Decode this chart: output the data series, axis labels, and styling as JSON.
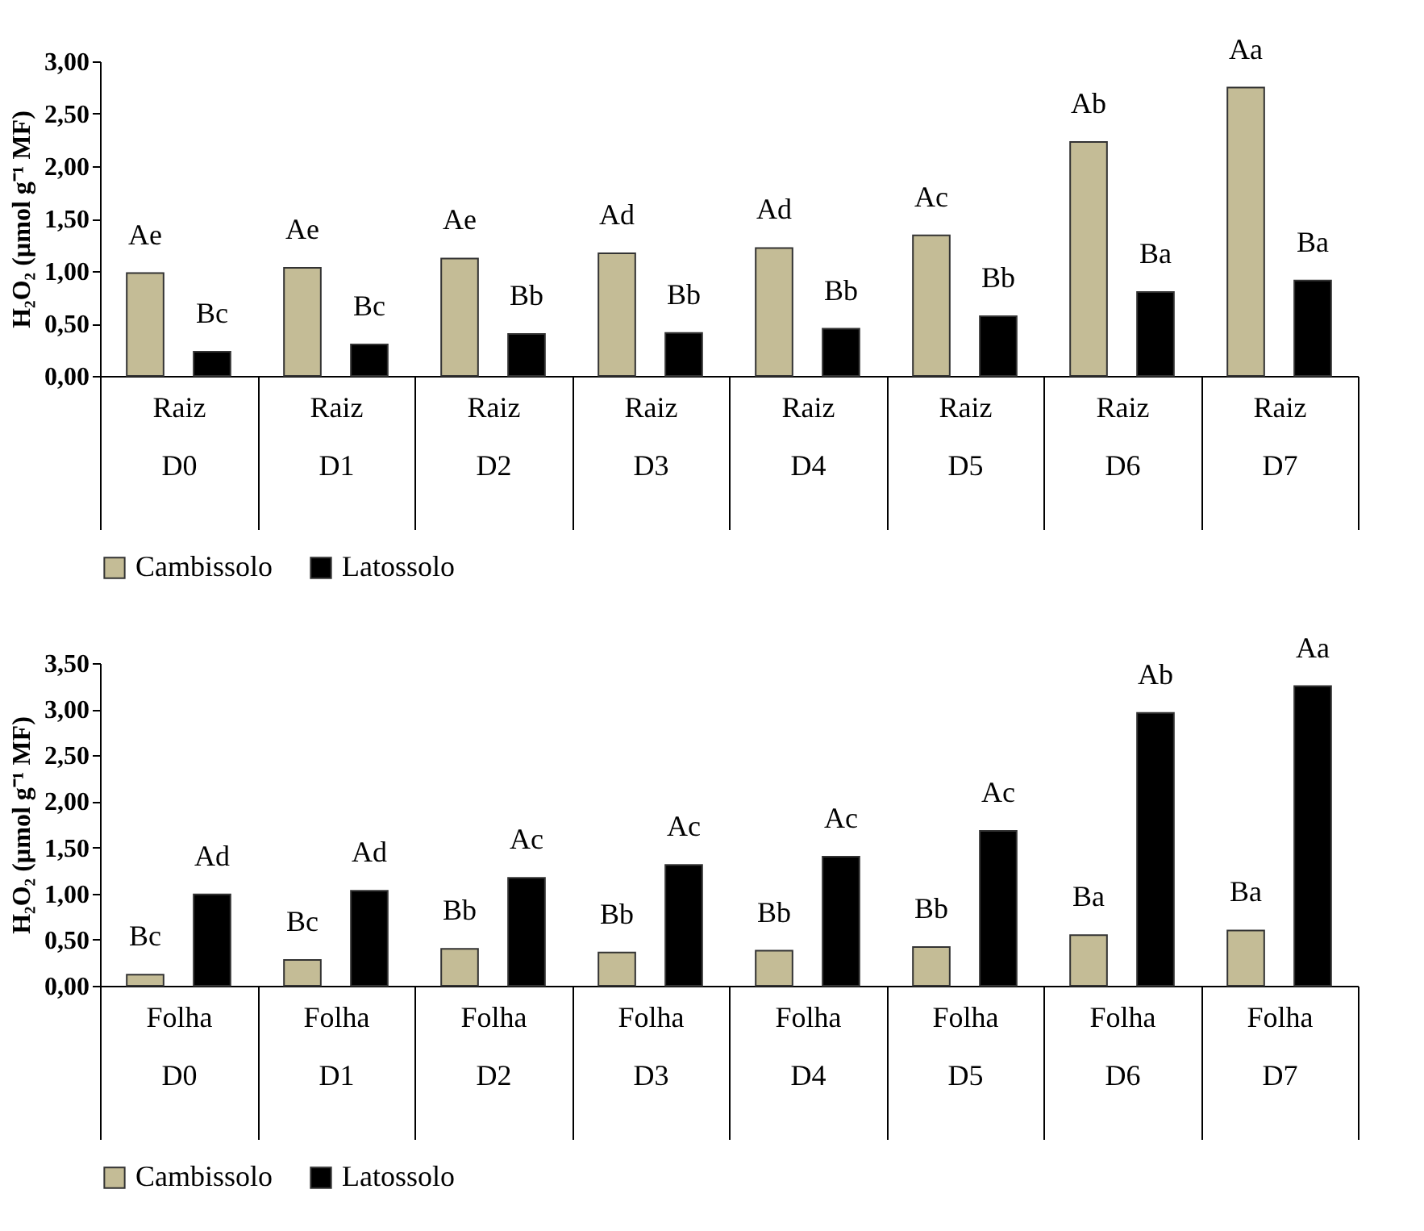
{
  "chart_data": [
    {
      "type": "bar",
      "ylabel": "H₂O₂ (µmol g⁻¹ MF)",
      "categories": [
        "Raiz\nD0",
        "Raiz\nD1",
        "Raiz\nD2",
        "Raiz\nD3",
        "Raiz\nD4",
        "Raiz\nD5",
        "Raiz\nD6",
        "Raiz\nD7"
      ],
      "ylim": [
        0,
        3
      ],
      "yticks": [
        {
          "value": 0,
          "label": "0,00"
        },
        {
          "value": 0.5,
          "label": "0,50"
        },
        {
          "value": 1,
          "label": "1,00"
        },
        {
          "value": 1.5,
          "label": "1,50"
        },
        {
          "value": 2,
          "label": "2,00"
        },
        {
          "value": 2.5,
          "label": "2,50"
        },
        {
          "value": 3,
          "label": "3,00"
        }
      ],
      "grid": false,
      "legend": "bottom",
      "series": [
        {
          "name": "Cambissolo",
          "color": "#c4bc96",
          "values": [
            0.98,
            1.03,
            1.12,
            1.17,
            1.22,
            1.34,
            2.23,
            2.75
          ],
          "value_labels": [
            "Ae",
            "Ae",
            "Ae",
            "Ad",
            "Ad",
            "Ac",
            "Ab",
            "Aa"
          ]
        },
        {
          "name": "Latossolo",
          "color": "#000000",
          "values": [
            0.23,
            0.3,
            0.4,
            0.41,
            0.45,
            0.57,
            0.8,
            0.91
          ],
          "value_labels": [
            "Bc",
            "Bc",
            "Bb",
            "Bb",
            "Bb",
            "Bb",
            "Ba",
            "Ba"
          ]
        }
      ]
    },
    {
      "type": "bar",
      "ylabel": "H₂O₂ (µmol g⁻¹ MF)",
      "categories": [
        "Folha\nD0",
        "Folha\nD1",
        "Folha\nD2",
        "Folha\nD3",
        "Folha\nD4",
        "Folha\nD5",
        "Folha\nD6",
        "Folha\nD7"
      ],
      "ylim": [
        0,
        3.5
      ],
      "yticks": [
        {
          "value": 0,
          "label": "0,00"
        },
        {
          "value": 0.5,
          "label": "0,50"
        },
        {
          "value": 1,
          "label": "1,00"
        },
        {
          "value": 1.5,
          "label": "1,50"
        },
        {
          "value": 2,
          "label": "2,00"
        },
        {
          "value": 2.5,
          "label": "2,50"
        },
        {
          "value": 3,
          "label": "3,00"
        },
        {
          "value": 3.5,
          "label": "3,50"
        }
      ],
      "grid": false,
      "legend": "bottom",
      "series": [
        {
          "name": "Cambissolo",
          "color": "#c4bc96",
          "values": [
            0.12,
            0.28,
            0.4,
            0.36,
            0.38,
            0.42,
            0.55,
            0.6
          ],
          "value_labels": [
            "Bc",
            "Bc",
            "Bb",
            "Bb",
            "Bb",
            "Bb",
            "Ba",
            "Ba"
          ]
        },
        {
          "name": "Latossolo",
          "color": "#000000",
          "values": [
            0.99,
            1.03,
            1.17,
            1.31,
            1.4,
            1.68,
            2.96,
            3.25
          ],
          "value_labels": [
            "Ad",
            "Ad",
            "Ac",
            "Ac",
            "Ac",
            "Ac",
            "Ab",
            "Aa"
          ]
        }
      ]
    }
  ]
}
